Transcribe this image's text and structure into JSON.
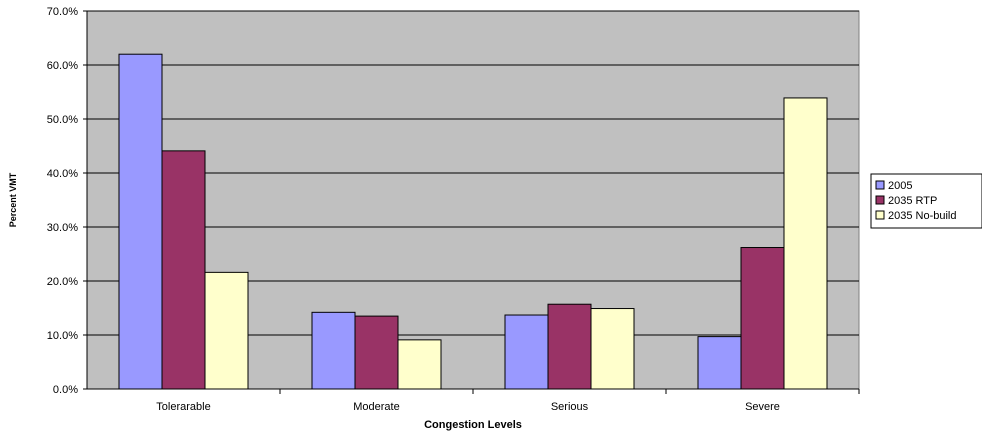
{
  "chart_data": {
    "type": "bar",
    "title": "",
    "xlabel": "Congestion Levels",
    "ylabel": "Percent VMT",
    "categories": [
      "Tolerarable",
      "Moderate",
      "Serious",
      "Severe"
    ],
    "series": [
      {
        "name": "2005",
        "values": [
          62.0,
          14.2,
          13.7,
          9.7
        ],
        "color": "#9999ff"
      },
      {
        "name": "2035 RTP",
        "values": [
          44.1,
          13.5,
          15.7,
          26.2
        ],
        "color": "#993366"
      },
      {
        "name": "2035 No-build",
        "values": [
          21.6,
          9.1,
          14.9,
          53.9
        ],
        "color": "#ffffcc"
      }
    ],
    "ylim": [
      0,
      70
    ],
    "yticks": [
      "0.0%",
      "10.0%",
      "20.0%",
      "30.0%",
      "40.0%",
      "50.0%",
      "60.0%",
      "70.0%"
    ],
    "grid": true,
    "legend_position": "right",
    "plot_background": "#c0c0c0"
  }
}
